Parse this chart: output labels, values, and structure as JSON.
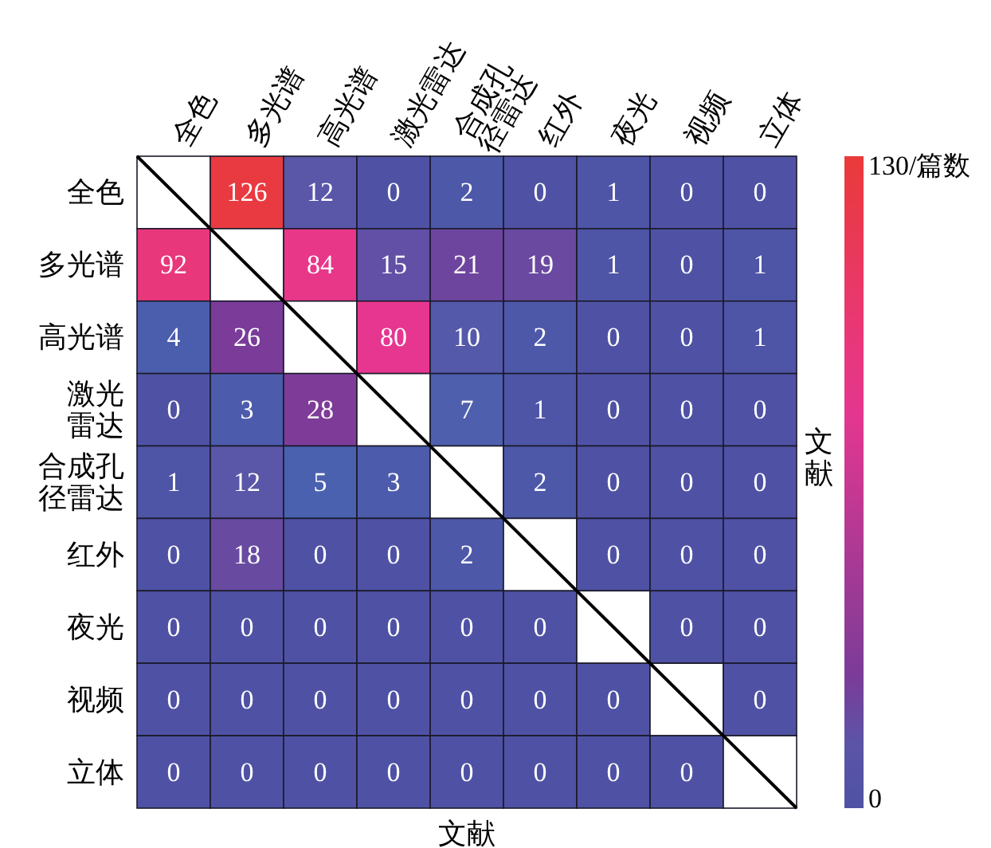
{
  "chart_data": {
    "type": "heatmap",
    "xlabel": "文献",
    "y2label": "文献",
    "categories": [
      "全色",
      "多光谱",
      "高光谱",
      "激光雷达",
      "合成孔径雷达",
      "红外",
      "夜光",
      "视频",
      "立体"
    ],
    "y_categories": [
      "全色",
      "多光谱",
      "高光谱",
      "激光雷达",
      "合成孔径雷达",
      "红外",
      "夜光",
      "视频",
      "立体"
    ],
    "cells": [
      [
        null,
        126,
        12,
        0,
        2,
        0,
        1,
        0,
        0
      ],
      [
        92,
        null,
        84,
        15,
        21,
        19,
        1,
        0,
        1
      ],
      [
        4,
        26,
        null,
        80,
        10,
        2,
        0,
        0,
        1
      ],
      [
        0,
        3,
        28,
        null,
        7,
        1,
        0,
        0,
        0
      ],
      [
        1,
        12,
        5,
        3,
        null,
        2,
        0,
        0,
        0
      ],
      [
        0,
        18,
        0,
        0,
        2,
        null,
        0,
        0,
        0
      ],
      [
        0,
        0,
        0,
        0,
        0,
        0,
        null,
        0,
        0
      ],
      [
        0,
        0,
        0,
        0,
        0,
        0,
        0,
        null,
        0
      ],
      [
        0,
        0,
        0,
        0,
        0,
        0,
        0,
        0,
        null
      ]
    ],
    "clim": [
      0,
      130
    ],
    "cticks": [
      0,
      {
        "value": 130,
        "label": "130/篇数"
      }
    ],
    "colors": [
      "#4f52a4",
      "#4a62b0",
      "#7a3c98",
      "#e8368f",
      "#ea3a3a"
    ],
    "data_labels": true
  }
}
